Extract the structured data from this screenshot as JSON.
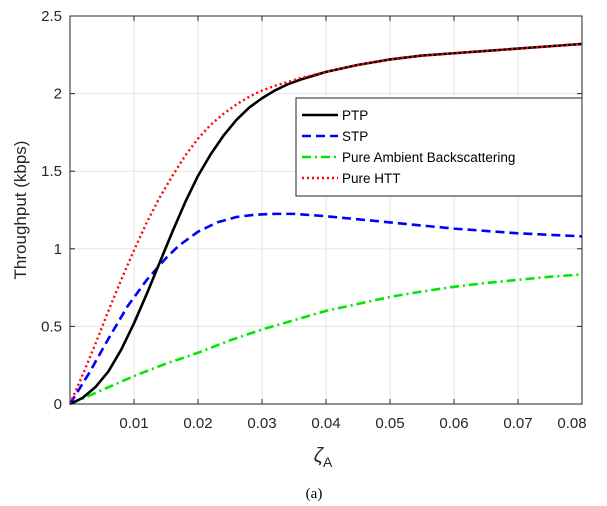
{
  "chart_data": {
    "type": "line",
    "ylabel": "Throughput (kbps)",
    "xlabel_symbol": "ζ",
    "xlabel_subscript": "A",
    "caption": "(a)",
    "xlim": [
      0,
      0.08
    ],
    "ylim": [
      0,
      2.5
    ],
    "xticks": [
      0.01,
      0.02,
      0.03,
      0.04,
      0.05,
      0.06,
      0.07,
      0.08
    ],
    "xtick_labels": [
      "0.01",
      "0.02",
      "0.03",
      "0.04",
      "0.05",
      "0.06",
      "0.07",
      "0.08"
    ],
    "yticks": [
      0,
      0.5,
      1,
      1.5,
      2,
      2.5
    ],
    "ytick_labels": [
      "0",
      "0.5",
      "1",
      "1.5",
      "2",
      "2.5"
    ],
    "grid": true,
    "legend_position": "center-right",
    "series": [
      {
        "name": "PTP",
        "color": "#000000",
        "dash": "solid",
        "x": [
          0,
          0.002,
          0.004,
          0.006,
          0.008,
          0.01,
          0.012,
          0.014,
          0.016,
          0.018,
          0.02,
          0.022,
          0.024,
          0.026,
          0.028,
          0.03,
          0.032,
          0.034,
          0.036,
          0.038,
          0.04,
          0.045,
          0.05,
          0.055,
          0.06,
          0.065,
          0.07,
          0.075,
          0.08
        ],
        "y": [
          0,
          0.04,
          0.11,
          0.21,
          0.35,
          0.52,
          0.71,
          0.91,
          1.11,
          1.3,
          1.47,
          1.61,
          1.73,
          1.83,
          1.91,
          1.97,
          2.02,
          2.06,
          2.09,
          2.115,
          2.14,
          2.185,
          2.22,
          2.245,
          2.26,
          2.275,
          2.29,
          2.305,
          2.32
        ]
      },
      {
        "name": "STP",
        "color": "#0000ff",
        "dash": "dashed",
        "x": [
          0,
          0.003,
          0.006,
          0.009,
          0.012,
          0.015,
          0.017,
          0.02,
          0.023,
          0.026,
          0.029,
          0.032,
          0.035,
          0.04,
          0.045,
          0.05,
          0.055,
          0.06,
          0.065,
          0.07,
          0.075,
          0.08
        ],
        "y": [
          0,
          0.2,
          0.42,
          0.63,
          0.8,
          0.94,
          1.02,
          1.11,
          1.17,
          1.205,
          1.22,
          1.225,
          1.225,
          1.21,
          1.19,
          1.17,
          1.15,
          1.13,
          1.115,
          1.1,
          1.09,
          1.08
        ]
      },
      {
        "name": "Pure Ambient Backscattering",
        "color": "#00e600",
        "dash": "dashdot",
        "x": [
          0,
          0.005,
          0.01,
          0.015,
          0.02,
          0.025,
          0.03,
          0.035,
          0.04,
          0.045,
          0.05,
          0.055,
          0.06,
          0.065,
          0.07,
          0.075,
          0.08
        ],
        "y": [
          0,
          0.09,
          0.18,
          0.26,
          0.33,
          0.41,
          0.48,
          0.54,
          0.6,
          0.645,
          0.69,
          0.725,
          0.755,
          0.78,
          0.8,
          0.82,
          0.835
        ]
      },
      {
        "name": "Pure HTT",
        "color": "#ff0000",
        "dash": "dotted",
        "x": [
          0,
          0.002,
          0.004,
          0.006,
          0.008,
          0.01,
          0.012,
          0.014,
          0.016,
          0.018,
          0.02,
          0.022,
          0.024,
          0.026,
          0.028,
          0.03,
          0.032,
          0.034,
          0.036,
          0.038,
          0.04,
          0.045,
          0.05,
          0.055,
          0.06,
          0.065,
          0.07,
          0.075,
          0.08
        ],
        "y": [
          0,
          0.19,
          0.39,
          0.6,
          0.8,
          0.99,
          1.17,
          1.33,
          1.47,
          1.6,
          1.71,
          1.8,
          1.87,
          1.93,
          1.98,
          2.02,
          2.05,
          2.075,
          2.1,
          2.12,
          2.14,
          2.185,
          2.22,
          2.245,
          2.26,
          2.275,
          2.29,
          2.305,
          2.32
        ]
      }
    ]
  }
}
